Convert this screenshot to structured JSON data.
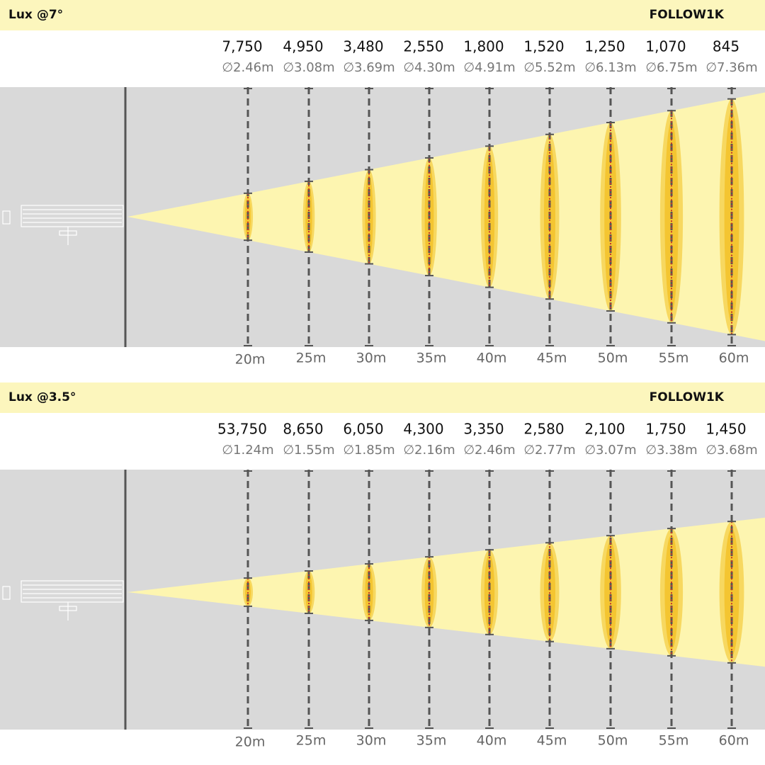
{
  "panels": [
    {
      "title": "Lux @7°",
      "model": "FOLLOW1K",
      "lux": [
        "7,750",
        "4,950",
        "3,480",
        "2,550",
        "1,800",
        "1,520",
        "1,250",
        "1,070",
        "845"
      ],
      "diameters": [
        "∅2.46m",
        "∅3.08m",
        "∅3.69m",
        "∅4.30m",
        "∅4.91m",
        "∅5.52m",
        "∅6.13m",
        "∅6.75m",
        "∅7.36m"
      ],
      "distances": [
        "20m",
        "25m",
        "30m",
        "35m",
        "40m",
        "45m",
        "50m",
        "55m",
        "60m"
      ]
    },
    {
      "title": "Lux @3.5°",
      "model": "FOLLOW1K",
      "lux": [
        "53,750",
        "8,650",
        "6,050",
        "4,300",
        "3,350",
        "2,580",
        "2,100",
        "1,750",
        "1,450"
      ],
      "diameters": [
        "∅1.24m",
        "∅1.55m",
        "∅1.85m",
        "∅2.16m",
        "∅2.46m",
        "∅2.77m",
        "∅3.07m",
        "∅3.38m",
        "∅3.68m"
      ],
      "distances": [
        "20m",
        "25m",
        "30m",
        "35m",
        "40m",
        "45m",
        "50m",
        "55m",
        "60m"
      ]
    }
  ]
}
